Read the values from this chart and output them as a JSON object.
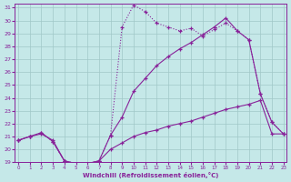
{
  "background_color": "#c5e8e8",
  "grid_color": "#a0c8c8",
  "line_color": "#882299",
  "xlim": [
    0,
    23
  ],
  "ylim": [
    19,
    31
  ],
  "xlabel": "Windchill (Refroidissement éolien,°C)",
  "yticks": [
    19,
    20,
    21,
    22,
    23,
    24,
    25,
    26,
    27,
    28,
    29,
    30,
    31
  ],
  "xticks": [
    0,
    1,
    2,
    3,
    4,
    5,
    6,
    7,
    8,
    9,
    10,
    11,
    12,
    13,
    14,
    15,
    16,
    17,
    18,
    19,
    20,
    21,
    22,
    23
  ],
  "curve_top_x": [
    0,
    1,
    2,
    3,
    4,
    5,
    6,
    7,
    8,
    9,
    10,
    11,
    12,
    13,
    14,
    15,
    16,
    17,
    18,
    19,
    20,
    21,
    22,
    23
  ],
  "curve_top_y": [
    20.7,
    21.0,
    21.3,
    20.6,
    19.1,
    18.9,
    18.9,
    19.1,
    21.1,
    29.5,
    31.2,
    30.7,
    29.8,
    29.5,
    29.2,
    29.4,
    28.8,
    29.3,
    29.8,
    29.2,
    28.5,
    24.3,
    22.1,
    21.2
  ],
  "curve_mid_x": [
    0,
    1,
    2,
    3,
    4,
    5,
    6,
    7,
    8,
    9,
    10,
    11,
    12,
    13,
    14,
    15,
    16,
    17,
    18,
    19,
    20,
    21,
    22,
    23
  ],
  "curve_mid_y": [
    20.7,
    21.0,
    21.3,
    20.6,
    19.1,
    18.9,
    18.9,
    19.1,
    21.1,
    22.5,
    24.5,
    25.5,
    26.5,
    27.2,
    27.8,
    28.3,
    28.9,
    29.5,
    30.2,
    29.2,
    28.5,
    24.3,
    22.1,
    21.2
  ],
  "curve_bot_x": [
    0,
    1,
    2,
    3,
    4,
    5,
    6,
    7,
    8,
    9,
    10,
    11,
    12,
    13,
    14,
    15,
    16,
    17,
    18,
    19,
    20,
    21,
    22,
    23
  ],
  "curve_bot_y": [
    20.7,
    21.0,
    21.2,
    20.7,
    19.1,
    18.9,
    18.9,
    19.1,
    20.0,
    20.5,
    21.0,
    21.3,
    21.5,
    21.8,
    22.0,
    22.2,
    22.5,
    22.8,
    23.1,
    23.3,
    23.5,
    23.8,
    21.2,
    21.2
  ]
}
